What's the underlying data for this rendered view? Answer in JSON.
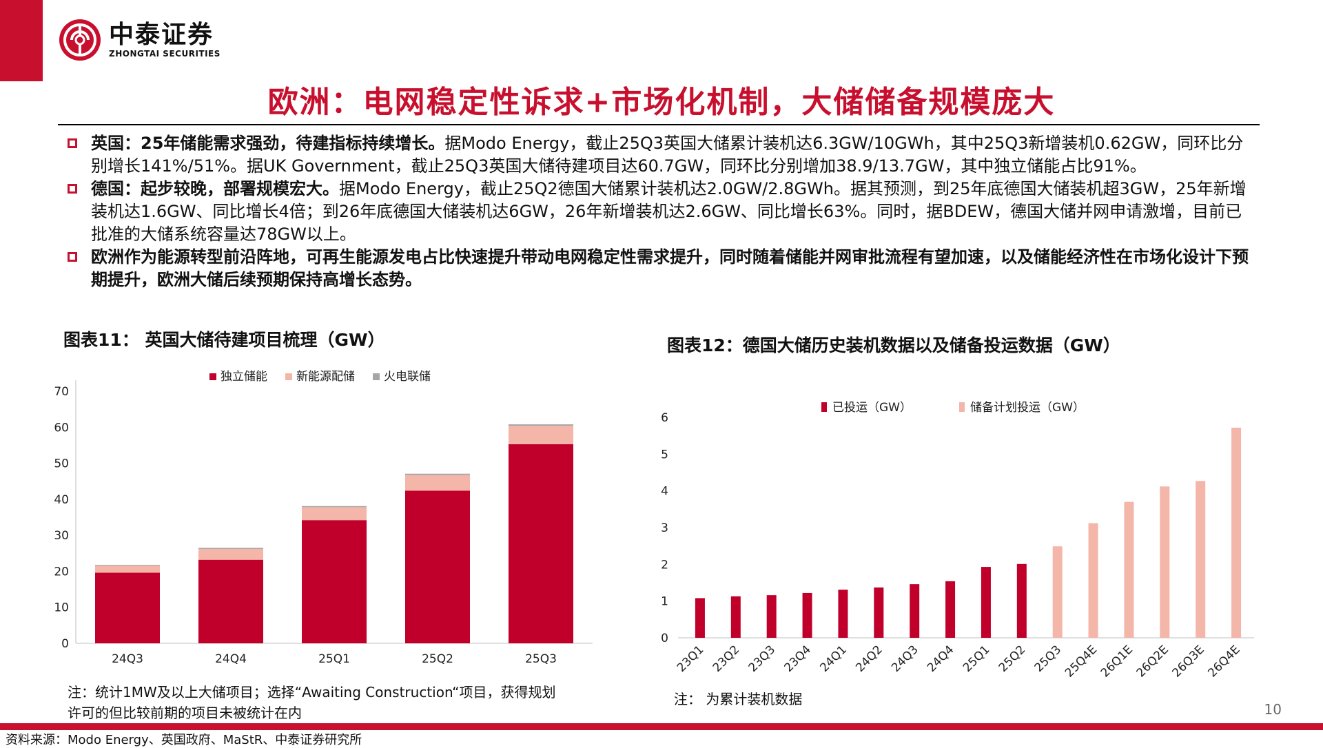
{
  "brand": {
    "name_cn": "中泰证券",
    "name_en": "ZHONGTAI SECURITIES",
    "color": "#c8102e"
  },
  "title": "欧洲：电网稳定性诉求+市场化机制，大储储备规模庞大",
  "bullets": [
    {
      "bold": "英国：25年储能需求强劲，待建指标持续增长。",
      "text": "据Modo Energy，截止25Q3英国大储累计装机达6.3GW/10GWh，其中25Q3新增装机0.62GW，同环比分别增长141%/51%。据UK Government，截止25Q3英国大储待建项目达60.7GW，同环比分别增加38.9/13.7GW，其中独立储能占比91%。"
    },
    {
      "bold": "德国：起步较晚，部署规模宏大。",
      "text": "据Modo Energy，截止25Q2德国大储累计装机达2.0GW/2.8GWh。据其预测，到25年底德国大储装机超3GW，25年新增装机达1.6GW、同比增长4倍；到26年底德国大储装机达6GW，26年新增装机达2.6GW、同比增长63%。同时，据BDEW，德国大储并网申请激增，目前已批准的大储系统容量达78GW以上。"
    },
    {
      "bold": "欧洲作为能源转型前沿阵地，可再生能源发电占比快速提升带动电网稳定性需求提升，同时随着储能并网审批流程有望加速，以及储能经济性在市场化设计下预期提升，欧洲大储后续预期保持高增长态势。",
      "text": ""
    }
  ],
  "fig11": {
    "title": "图表11：  英国大储待建项目梳理（GW）",
    "note": "注：统计1MW及以上大储项目；选择“Awaiting Construction“项目，获得规划许可的但比较前期的项目未被统计在内"
  },
  "fig12": {
    "title": "图表12：德国大储历史装机数据以及储备投运数据（GW）",
    "note": "注：  为累计装机数据"
  },
  "source": "资料来源：Modo Energy、英国政府、MaStR、中泰证券研究所",
  "page_number": "10",
  "chart_data": [
    {
      "type": "bar",
      "stacked": true,
      "categories": [
        "24Q3",
        "24Q4",
        "25Q1",
        "25Q2",
        "25Q3"
      ],
      "series": [
        {
          "name": "独立储能",
          "color": "#c0002b",
          "values": [
            19.6,
            23.2,
            34.2,
            42.4,
            55.3
          ]
        },
        {
          "name": "新能源配储",
          "color": "#f4b6a8",
          "values": [
            2.0,
            3.0,
            3.6,
            4.3,
            5.1
          ]
        },
        {
          "name": "火电联储",
          "color": "#a6a6a6",
          "values": [
            0.2,
            0.3,
            0.3,
            0.4,
            0.4
          ]
        }
      ],
      "ylim": [
        0,
        70
      ],
      "yticks": [
        0,
        10,
        20,
        30,
        40,
        50,
        60,
        70
      ],
      "legend": "top"
    },
    {
      "type": "bar",
      "categories": [
        "23Q1",
        "23Q2",
        "23Q3",
        "23Q4",
        "24Q1",
        "24Q2",
        "24Q3",
        "24Q4",
        "25Q1",
        "25Q2",
        "25Q3",
        "25Q4E",
        "26Q1E",
        "26Q2E",
        "26Q3E",
        "26Q4E"
      ],
      "series": [
        {
          "name": "已投运（GW）",
          "color": "#c0002b",
          "values": [
            1.08,
            1.13,
            1.16,
            1.22,
            1.31,
            1.37,
            1.46,
            1.54,
            1.93,
            2.01,
            null,
            null,
            null,
            null,
            null,
            null
          ]
        },
        {
          "name": "储备计划投运（GW）",
          "color": "#f4b6a8",
          "values": [
            null,
            null,
            null,
            null,
            null,
            null,
            null,
            null,
            null,
            null,
            2.49,
            3.12,
            3.7,
            4.12,
            4.27,
            5.72
          ]
        }
      ],
      "ylim": [
        0,
        6
      ],
      "yticks": [
        0,
        1,
        2,
        3,
        4,
        5,
        6
      ],
      "legend": "top"
    }
  ]
}
